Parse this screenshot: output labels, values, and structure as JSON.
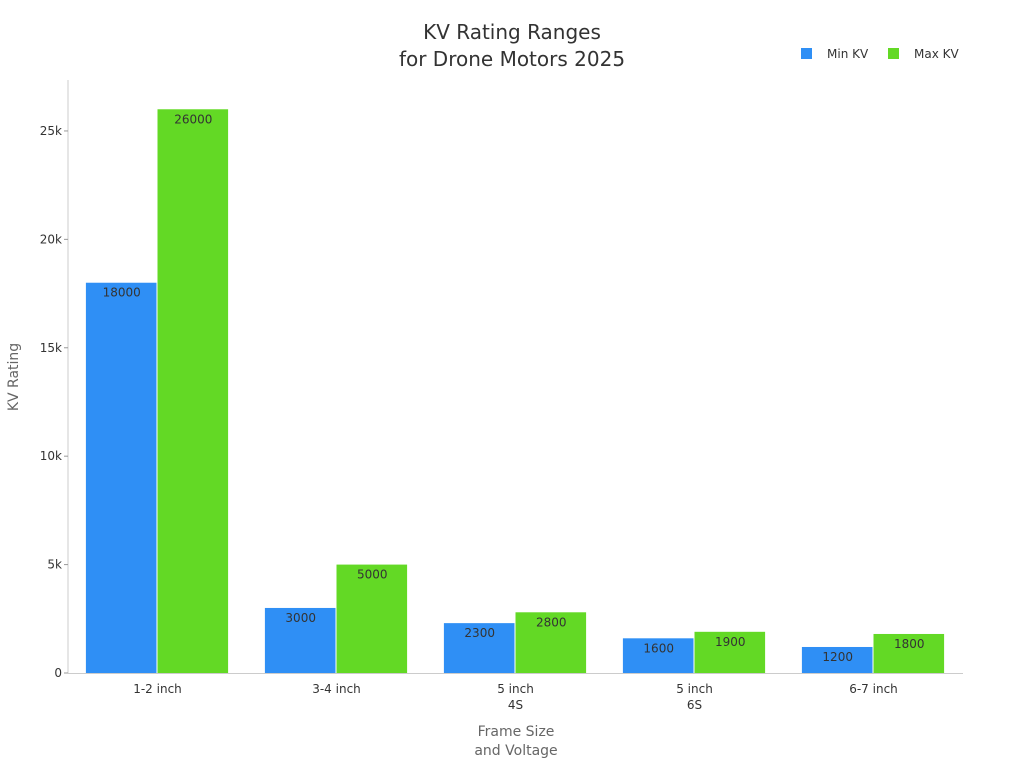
{
  "chart_data": {
    "type": "bar",
    "title": "KV Rating Ranges\nfor Drone Motors 2025",
    "x_label": "Frame Size\nand Voltage",
    "y_label": "KV Rating",
    "categories": [
      "1-2 inch",
      "3-4 inch",
      "5 inch\n4S",
      "5 inch\n6S",
      "6-7 inch"
    ],
    "series": [
      {
        "name": "Min KV",
        "color": "#2f8ff5",
        "values": [
          18000,
          3000,
          2300,
          1600,
          1200
        ]
      },
      {
        "name": "Max KV",
        "color": "#63d925",
        "values": [
          26000,
          5000,
          2800,
          1900,
          1800
        ]
      }
    ],
    "ylim": [
      0,
      27350
    ],
    "yticks": [
      0,
      {
        "value": 5000,
        "label": "5k"
      },
      {
        "value": 10000,
        "label": "10k"
      },
      {
        "value": 15000,
        "label": "15k"
      },
      {
        "value": 20000,
        "label": "20k"
      },
      {
        "value": 25000,
        "label": "25k"
      }
    ],
    "legend": "top-right"
  }
}
